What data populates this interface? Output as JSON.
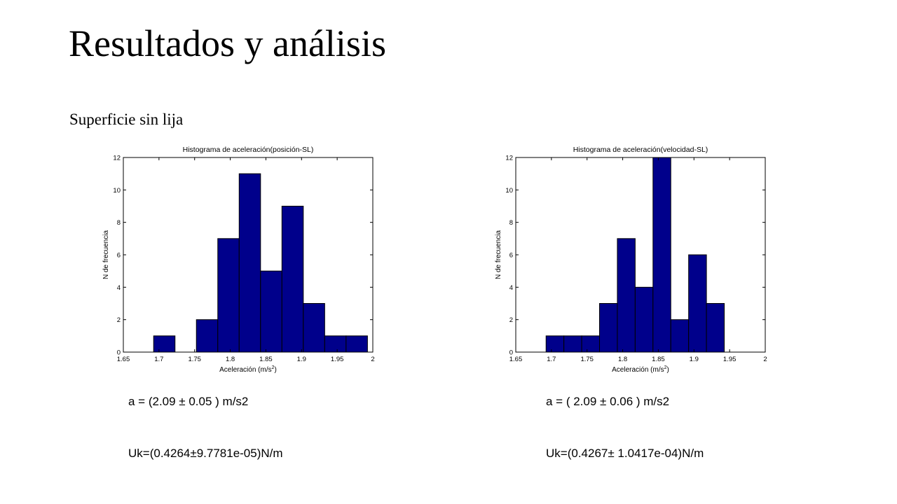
{
  "slide": {
    "title": "Resultados y análisis",
    "subtitle": "Superficie sin lija",
    "results": [
      {
        "accel": "a = (2.09 ± 0.05 ) m/s2",
        "uk": "Uk=(0.4264±9.7781e-05)N/m"
      },
      {
        "accel": "a = ( 2.09 ± 0.06 ) m/s2",
        "uk": "Uk=(0.4267± 1.0417e-04)N/m"
      }
    ]
  },
  "chart_data": [
    {
      "type": "bar",
      "title": "Histograma de aceleración(posición-SL)",
      "xlabel": "Aceleración (m/s",
      "xlabel_sup": "2",
      "xlabel_close": ")",
      "ylabel": "N de frecuencia",
      "xlim": [
        1.65,
        2
      ],
      "ylim": [
        0,
        12
      ],
      "xticks": [
        "1.65",
        "1.7",
        "1.75",
        "1.8",
        "1.85",
        "1.9",
        "1.95",
        "2"
      ],
      "yticks": [
        "0",
        "2",
        "4",
        "6",
        "8",
        "10",
        "12"
      ],
      "bin_edges": [
        1.6925,
        1.7225,
        1.7525,
        1.7825,
        1.8125,
        1.8425,
        1.8725,
        1.9025,
        1.9325,
        1.9625,
        1.9925
      ],
      "values": [
        1,
        0,
        2,
        7,
        11,
        5,
        9,
        3,
        1,
        1
      ],
      "bar_color": "#00008b",
      "grid": false
    },
    {
      "type": "bar",
      "title": "Histograma de aceleración(velocidad-SL)",
      "xlabel": "Aceleración (m/s",
      "xlabel_sup": "2",
      "xlabel_close": ")",
      "ylabel": "N de frecuencia",
      "xlim": [
        1.65,
        2
      ],
      "ylim": [
        0,
        12
      ],
      "xticks": [
        "1.65",
        "1.7",
        "1.75",
        "1.8",
        "1.85",
        "1.9",
        "1.95",
        "2"
      ],
      "yticks": [
        "0",
        "2",
        "4",
        "6",
        "8",
        "10",
        "12"
      ],
      "bin_edges": [
        1.6925,
        1.7175,
        1.7425,
        1.7675,
        1.7925,
        1.8175,
        1.8425,
        1.8675,
        1.8925,
        1.9175,
        1.9425
      ],
      "values": [
        1,
        1,
        1,
        3,
        7,
        4,
        12,
        2,
        6,
        3
      ],
      "bar_color": "#00008b",
      "grid": false
    }
  ]
}
